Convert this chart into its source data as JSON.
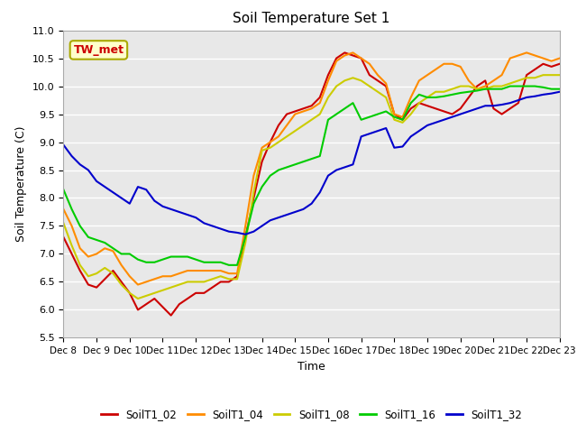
{
  "title": "Soil Temperature Set 1",
  "xlabel": "Time",
  "ylabel": "Soil Temperature (C)",
  "ylim": [
    5.5,
    11.0
  ],
  "xlim": [
    8,
    23
  ],
  "annotation": "TW_met",
  "series": {
    "SoilT1_02": {
      "color": "#cc0000",
      "x": [
        8,
        8.25,
        8.5,
        8.75,
        9,
        9.25,
        9.5,
        9.75,
        10,
        10.25,
        10.5,
        10.75,
        11,
        11.25,
        11.5,
        11.75,
        12,
        12.25,
        12.5,
        12.75,
        13,
        13.25,
        13.5,
        13.75,
        14,
        14.25,
        14.5,
        14.75,
        15,
        15.25,
        15.5,
        15.75,
        16,
        16.25,
        16.5,
        16.75,
        17,
        17.25,
        17.5,
        17.75,
        18,
        18.25,
        18.5,
        18.75,
        19,
        19.25,
        19.5,
        19.75,
        20,
        20.25,
        20.5,
        20.75,
        21,
        21.25,
        21.5,
        21.75,
        22,
        22.25,
        22.5,
        22.75,
        23
      ],
      "y": [
        7.3,
        7.0,
        6.7,
        6.45,
        6.4,
        6.55,
        6.7,
        6.5,
        6.3,
        6.0,
        6.1,
        6.2,
        6.05,
        5.9,
        6.1,
        6.2,
        6.3,
        6.3,
        6.4,
        6.5,
        6.5,
        6.6,
        7.3,
        8.0,
        8.65,
        9.0,
        9.3,
        9.5,
        9.55,
        9.6,
        9.65,
        9.8,
        10.2,
        10.5,
        10.6,
        10.55,
        10.5,
        10.2,
        10.1,
        10.0,
        9.5,
        9.4,
        9.6,
        9.7,
        9.65,
        9.6,
        9.55,
        9.5,
        9.6,
        9.8,
        10.0,
        10.1,
        9.6,
        9.5,
        9.6,
        9.7,
        10.2,
        10.3,
        10.4,
        10.35,
        10.4
      ]
    },
    "SoilT1_04": {
      "color": "#ff8c00",
      "x": [
        8,
        8.25,
        8.5,
        8.75,
        9,
        9.25,
        9.5,
        9.75,
        10,
        10.25,
        10.5,
        10.75,
        11,
        11.25,
        11.5,
        11.75,
        12,
        12.25,
        12.5,
        12.75,
        13,
        13.25,
        13.5,
        13.75,
        14,
        14.25,
        14.5,
        14.75,
        15,
        15.25,
        15.5,
        15.75,
        16,
        16.25,
        16.5,
        16.75,
        17,
        17.25,
        17.5,
        17.75,
        18,
        18.25,
        18.5,
        18.75,
        19,
        19.25,
        19.5,
        19.75,
        20,
        20.25,
        20.5,
        20.75,
        21,
        21.25,
        21.5,
        21.75,
        22,
        22.25,
        22.5,
        22.75,
        23
      ],
      "y": [
        7.8,
        7.5,
        7.1,
        6.95,
        7.0,
        7.1,
        7.05,
        6.8,
        6.6,
        6.45,
        6.5,
        6.55,
        6.6,
        6.6,
        6.65,
        6.7,
        6.7,
        6.7,
        6.7,
        6.7,
        6.65,
        6.65,
        7.5,
        8.4,
        8.9,
        9.0,
        9.1,
        9.3,
        9.5,
        9.55,
        9.6,
        9.7,
        10.1,
        10.45,
        10.55,
        10.6,
        10.5,
        10.4,
        10.2,
        10.05,
        9.5,
        9.45,
        9.8,
        10.1,
        10.2,
        10.3,
        10.4,
        10.4,
        10.35,
        10.1,
        9.95,
        10.0,
        10.1,
        10.2,
        10.5,
        10.55,
        10.6,
        10.55,
        10.5,
        10.45,
        10.5
      ]
    },
    "SoilT1_08": {
      "color": "#cccc00",
      "x": [
        8,
        8.25,
        8.5,
        8.75,
        9,
        9.25,
        9.5,
        9.75,
        10,
        10.25,
        10.5,
        10.75,
        11,
        11.25,
        11.5,
        11.75,
        12,
        12.25,
        12.5,
        12.75,
        13,
        13.25,
        13.5,
        13.75,
        14,
        14.25,
        14.5,
        14.75,
        15,
        15.25,
        15.5,
        15.75,
        16,
        16.25,
        16.5,
        16.75,
        17,
        17.25,
        17.5,
        17.75,
        18,
        18.25,
        18.5,
        18.75,
        19,
        19.25,
        19.5,
        19.75,
        20,
        20.25,
        20.5,
        20.75,
        21,
        21.25,
        21.5,
        21.75,
        22,
        22.25,
        22.5,
        22.75,
        23
      ],
      "y": [
        7.55,
        7.15,
        6.8,
        6.6,
        6.65,
        6.75,
        6.65,
        6.45,
        6.3,
        6.2,
        6.25,
        6.3,
        6.35,
        6.4,
        6.45,
        6.5,
        6.5,
        6.5,
        6.55,
        6.6,
        6.55,
        6.55,
        7.2,
        8.1,
        8.85,
        8.9,
        9.0,
        9.1,
        9.2,
        9.3,
        9.4,
        9.5,
        9.8,
        10.0,
        10.1,
        10.15,
        10.1,
        10.0,
        9.9,
        9.8,
        9.4,
        9.35,
        9.5,
        9.7,
        9.8,
        9.9,
        9.9,
        9.95,
        10.0,
        10.0,
        9.95,
        9.95,
        10.0,
        10.0,
        10.05,
        10.1,
        10.15,
        10.15,
        10.2,
        10.2,
        10.2
      ]
    },
    "SoilT1_16": {
      "color": "#00cc00",
      "x": [
        8,
        8.25,
        8.5,
        8.75,
        9,
        9.25,
        9.5,
        9.75,
        10,
        10.25,
        10.5,
        10.75,
        11,
        11.25,
        11.5,
        11.75,
        12,
        12.25,
        12.5,
        12.75,
        13,
        13.25,
        13.5,
        13.75,
        14,
        14.25,
        14.5,
        14.75,
        15,
        15.25,
        15.5,
        15.75,
        16,
        16.25,
        16.5,
        16.75,
        17,
        17.25,
        17.5,
        17.75,
        18,
        18.25,
        18.5,
        18.75,
        19,
        19.25,
        19.5,
        19.75,
        20,
        20.25,
        20.5,
        20.75,
        21,
        21.25,
        21.5,
        21.75,
        22,
        22.25,
        22.5,
        22.75,
        23
      ],
      "y": [
        8.15,
        7.8,
        7.5,
        7.3,
        7.25,
        7.2,
        7.1,
        7.0,
        7.0,
        6.9,
        6.85,
        6.85,
        6.9,
        6.95,
        6.95,
        6.95,
        6.9,
        6.85,
        6.85,
        6.85,
        6.8,
        6.8,
        7.3,
        7.9,
        8.2,
        8.4,
        8.5,
        8.55,
        8.6,
        8.65,
        8.7,
        8.75,
        9.4,
        9.5,
        9.6,
        9.7,
        9.4,
        9.45,
        9.5,
        9.55,
        9.45,
        9.4,
        9.7,
        9.85,
        9.8,
        9.8,
        9.82,
        9.85,
        9.88,
        9.9,
        9.92,
        9.95,
        9.95,
        9.95,
        10.0,
        10.0,
        10.0,
        10.0,
        9.98,
        9.95,
        9.95
      ]
    },
    "SoilT1_32": {
      "color": "#0000cc",
      "x": [
        8,
        8.25,
        8.5,
        8.75,
        9,
        9.25,
        9.5,
        9.75,
        10,
        10.25,
        10.5,
        10.75,
        11,
        11.25,
        11.5,
        11.75,
        12,
        12.25,
        12.5,
        12.75,
        13,
        13.25,
        13.5,
        13.75,
        14,
        14.25,
        14.5,
        14.75,
        15,
        15.25,
        15.5,
        15.75,
        16,
        16.25,
        16.5,
        16.75,
        17,
        17.25,
        17.5,
        17.75,
        18,
        18.25,
        18.5,
        18.75,
        19,
        19.25,
        19.5,
        19.75,
        20,
        20.25,
        20.5,
        20.75,
        21,
        21.25,
        21.5,
        21.75,
        22,
        22.25,
        22.5,
        22.75,
        23
      ],
      "y": [
        8.95,
        8.75,
        8.6,
        8.5,
        8.3,
        8.2,
        8.1,
        8.0,
        7.9,
        8.2,
        8.15,
        7.95,
        7.85,
        7.8,
        7.75,
        7.7,
        7.65,
        7.55,
        7.5,
        7.45,
        7.4,
        7.38,
        7.35,
        7.4,
        7.5,
        7.6,
        7.65,
        7.7,
        7.75,
        7.8,
        7.9,
        8.1,
        8.4,
        8.5,
        8.55,
        8.6,
        9.1,
        9.15,
        9.2,
        9.25,
        8.9,
        8.92,
        9.1,
        9.2,
        9.3,
        9.35,
        9.4,
        9.45,
        9.5,
        9.55,
        9.6,
        9.65,
        9.65,
        9.67,
        9.7,
        9.75,
        9.8,
        9.82,
        9.85,
        9.87,
        9.9
      ]
    }
  },
  "xtick_labels": [
    "Dec 8",
    "Dec 9",
    "Dec 10",
    "Dec 11",
    "Dec 12",
    "Dec 13",
    "Dec 14",
    "Dec 15",
    "Dec 16",
    "Dec 17",
    "Dec 18",
    "Dec 19",
    "Dec 20",
    "Dec 21",
    "Dec 22",
    "Dec 23"
  ],
  "xtick_positions": [
    8,
    9,
    10,
    11,
    12,
    13,
    14,
    15,
    16,
    17,
    18,
    19,
    20,
    21,
    22,
    23
  ],
  "ytick_labels": [
    "5.5",
    "6.0",
    "6.5",
    "7.0",
    "7.5",
    "8.0",
    "8.5",
    "9.0",
    "9.5",
    "10.0",
    "10.5",
    "11.0"
  ],
  "ytick_positions": [
    5.5,
    6.0,
    6.5,
    7.0,
    7.5,
    8.0,
    8.5,
    9.0,
    9.5,
    10.0,
    10.5,
    11.0
  ],
  "fig_bg_color": "#ffffff",
  "plot_bg_color": "#e8e8e8",
  "grid_color": "#ffffff",
  "legend_series": [
    "SoilT1_02",
    "SoilT1_04",
    "SoilT1_08",
    "SoilT1_16",
    "SoilT1_32"
  ],
  "legend_colors": [
    "#cc0000",
    "#ff8c00",
    "#cccc00",
    "#00cc00",
    "#0000cc"
  ],
  "annotation_text": "TW_met",
  "annotation_color": "#cc0000",
  "annotation_bg": "#ffffcc",
  "annotation_edge": "#aaaa00"
}
